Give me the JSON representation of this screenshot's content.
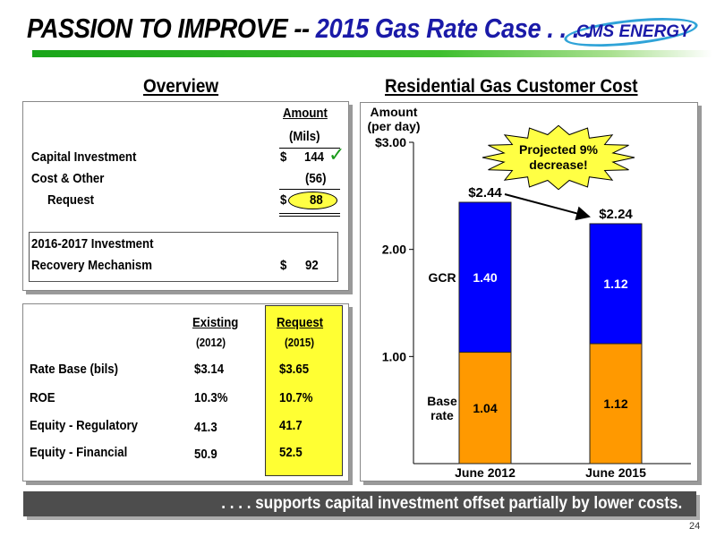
{
  "title": {
    "part1": "PASSION TO IMPROVE -- ",
    "part2": "2015 Gas Rate Case . . . ."
  },
  "logo": {
    "text": "CMS ENERGY"
  },
  "overview": {
    "heading": "Overview",
    "amount_header": "Amount",
    "amount_unit": "(Mils)",
    "rows": [
      {
        "label": "Capital Investment",
        "currency": "$",
        "value": "144"
      },
      {
        "label": "Cost & Other",
        "currency": "",
        "value": "(56)"
      },
      {
        "label": "Request",
        "currency": "$",
        "value": "88"
      }
    ],
    "mechanism": {
      "label_line1": "2016-2017 Investment",
      "label_line2": "Recovery Mechanism",
      "currency": "$",
      "value": "92"
    }
  },
  "comparison": {
    "existing_header": "Existing",
    "existing_year": "(2012)",
    "request_header": "Request",
    "request_year": "(2015)",
    "rows": [
      {
        "label": "Rate Base (bils)",
        "existing": "$3.14",
        "request": "$3.65"
      },
      {
        "label": "ROE",
        "existing": "10.3%",
        "request": "10.7%"
      },
      {
        "label": "Equity - Regulatory",
        "existing": "41.3",
        "request": "41.7"
      },
      {
        "label": "Equity - Financial",
        "existing": "50.9",
        "request": "52.5"
      }
    ]
  },
  "chart_heading": "Residential Gas Customer Cost",
  "chart_data": {
    "type": "bar",
    "stacked": true,
    "ylabel": "Amount (per day)",
    "ylabel_line1": "Amount",
    "ylabel_line2": "(per day)",
    "ylim": [
      0,
      3.0
    ],
    "yticks": [
      "$3.00",
      "2.00",
      "1.00"
    ],
    "ytick_values": [
      3.0,
      2.0,
      1.0
    ],
    "categories": [
      "June 2012",
      "June 2015"
    ],
    "series": [
      {
        "name": "Base rate",
        "label_line1": "Base",
        "label_line2": "rate",
        "values": [
          1.04,
          1.12
        ],
        "labels": [
          "1.04",
          "1.12"
        ],
        "color": "#ff9900"
      },
      {
        "name": "GCR",
        "values": [
          1.4,
          1.12
        ],
        "labels": [
          "1.40",
          "1.12"
        ],
        "color": "#0000ff"
      }
    ],
    "totals": [
      "$2.44",
      "$2.24"
    ],
    "callout": {
      "line1": "Projected 9%",
      "line2": "decrease!"
    }
  },
  "footer": {
    "text": ". . . . supports capital investment offset partially by lower costs."
  },
  "page_number": "24"
}
